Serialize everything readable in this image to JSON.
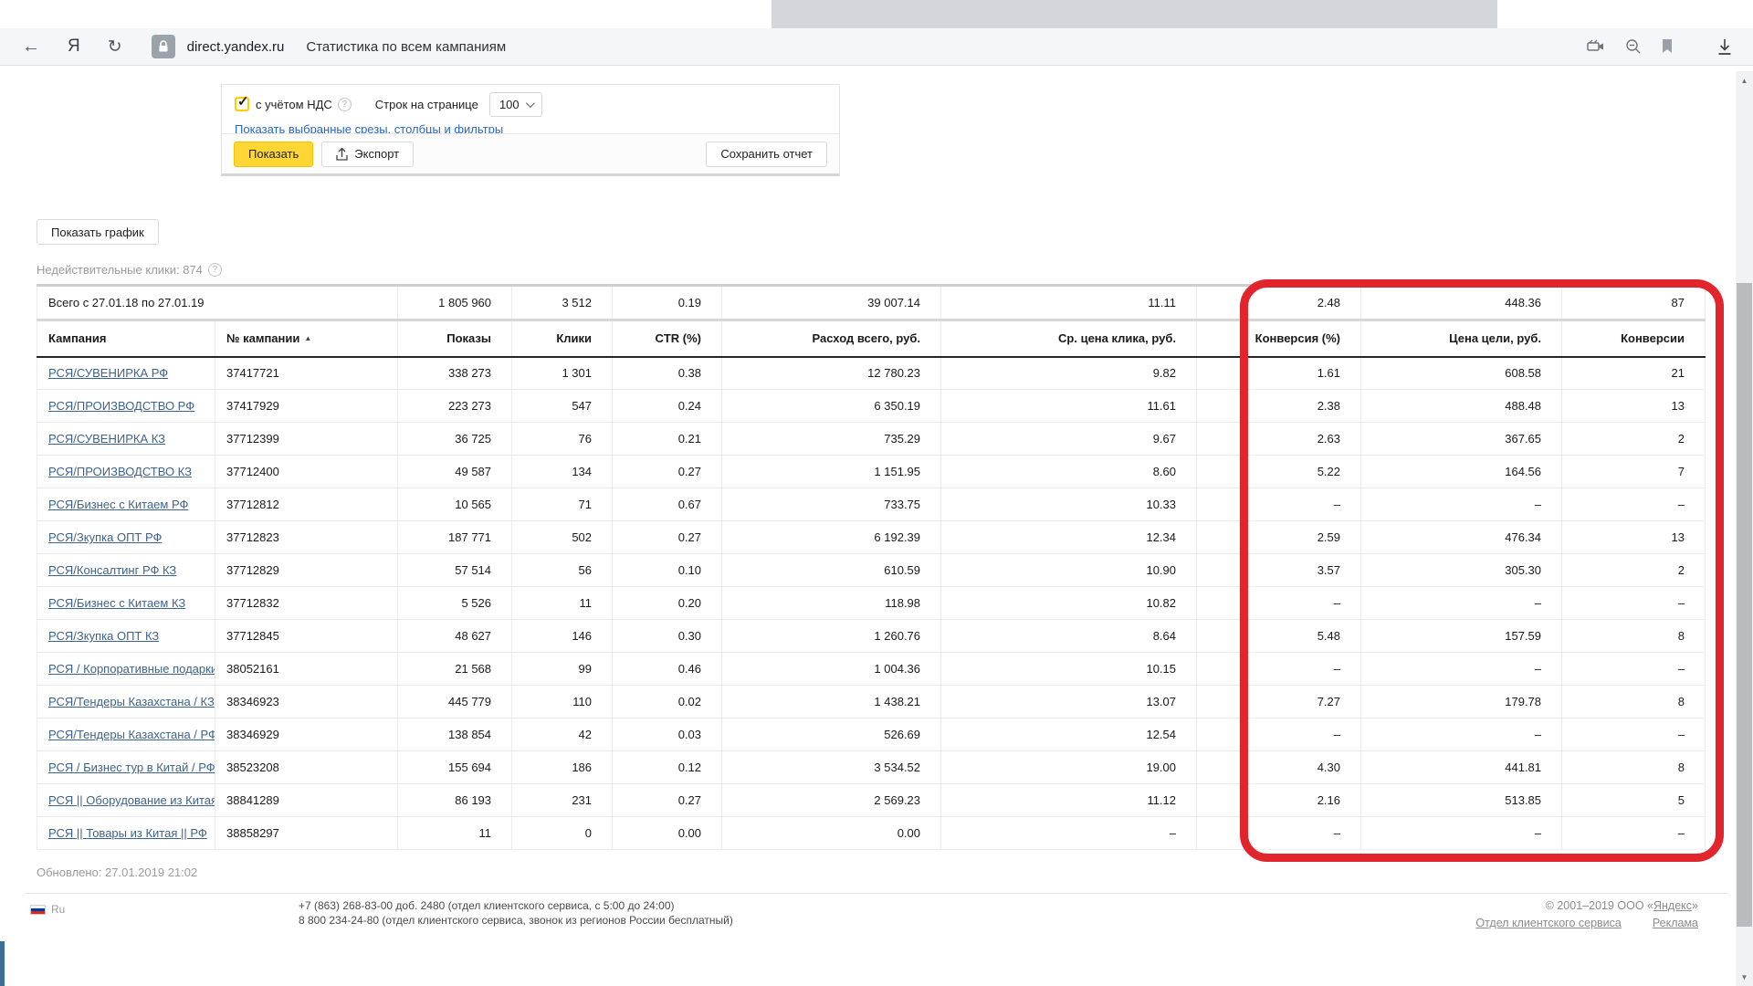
{
  "browser": {
    "domain": "direct.yandex.ru",
    "title": "Статистика по всем кампаниям"
  },
  "icons": {
    "back": "←",
    "yandex_logo": "Я",
    "refresh": "↻",
    "help": "?",
    "check": "✓",
    "sort_asc": "▲",
    "scroll_up": "▲",
    "scroll_down": "▼"
  },
  "panel": {
    "vat_label": "с учётом НДС",
    "rows_label": "Строк на странице",
    "rows_value": "100",
    "slices_link": "Показать выбранные срезы, столбцы и фильтры",
    "show_button": "Показать",
    "export_button": "Экспорт",
    "save_report_button": "Сохранить отчет"
  },
  "page": {
    "show_chart_button": "Показать график",
    "invalid_clicks": "Недействительные клики: 874",
    "updated": "Обновлено: 27.01.2019 21:02"
  },
  "table": {
    "columns": [
      {
        "key": "name",
        "label": "Кампания",
        "align": "left"
      },
      {
        "key": "id",
        "label": "№ кампании",
        "align": "left",
        "sorted": true
      },
      {
        "key": "shows",
        "label": "Показы",
        "align": "right"
      },
      {
        "key": "clicks",
        "label": "Клики",
        "align": "right"
      },
      {
        "key": "ctr",
        "label": "CTR (%)",
        "align": "right"
      },
      {
        "key": "cost",
        "label": "Расход всего, руб.",
        "align": "right"
      },
      {
        "key": "cpc",
        "label": "Ср. цена клика, руб.",
        "align": "right"
      },
      {
        "key": "conv_pct",
        "label": "Конверсия (%)",
        "align": "right"
      },
      {
        "key": "goal_cost",
        "label": "Цена цели, руб.",
        "align": "right"
      },
      {
        "key": "conversions",
        "label": "Конверсии",
        "align": "right"
      }
    ],
    "total": {
      "label": "Всего с 27.01.18 по 27.01.19",
      "values": {
        "shows": "1 805 960",
        "clicks": "3 512",
        "ctr": "0.19",
        "cost": "39 007.14",
        "cpc": "11.11",
        "conv_pct": "2.48",
        "goal_cost": "448.36",
        "conversions": "87"
      }
    },
    "rows": [
      {
        "name": "РСЯ/СУВЕНИРКА РФ",
        "id": "37417721",
        "shows": "338 273",
        "clicks": "1 301",
        "ctr": "0.38",
        "cost": "12 780.23",
        "cpc": "9.82",
        "conv_pct": "1.61",
        "goal_cost": "608.58",
        "conversions": "21"
      },
      {
        "name": "РСЯ/ПРОИЗВОДСТВО РФ",
        "id": "37417929",
        "shows": "223 273",
        "clicks": "547",
        "ctr": "0.24",
        "cost": "6 350.19",
        "cpc": "11.61",
        "conv_pct": "2.38",
        "goal_cost": "488.48",
        "conversions": "13"
      },
      {
        "name": "РСЯ/СУВЕНИРКА КЗ",
        "id": "37712399",
        "shows": "36 725",
        "clicks": "76",
        "ctr": "0.21",
        "cost": "735.29",
        "cpc": "9.67",
        "conv_pct": "2.63",
        "goal_cost": "367.65",
        "conversions": "2"
      },
      {
        "name": "РСЯ/ПРОИЗВОДСТВО КЗ",
        "id": "37712400",
        "shows": "49 587",
        "clicks": "134",
        "ctr": "0.27",
        "cost": "1 151.95",
        "cpc": "8.60",
        "conv_pct": "5.22",
        "goal_cost": "164.56",
        "conversions": "7"
      },
      {
        "name": "РСЯ/Бизнес с Китаем РФ",
        "id": "37712812",
        "shows": "10 565",
        "clicks": "71",
        "ctr": "0.67",
        "cost": "733.75",
        "cpc": "10.33",
        "conv_pct": "–",
        "goal_cost": "–",
        "conversions": "–"
      },
      {
        "name": "РСЯ/Зкупка ОПТ РФ",
        "id": "37712823",
        "shows": "187 771",
        "clicks": "502",
        "ctr": "0.27",
        "cost": "6 192.39",
        "cpc": "12.34",
        "conv_pct": "2.59",
        "goal_cost": "476.34",
        "conversions": "13"
      },
      {
        "name": "РСЯ/Консалтинг РФ КЗ",
        "id": "37712829",
        "shows": "57 514",
        "clicks": "56",
        "ctr": "0.10",
        "cost": "610.59",
        "cpc": "10.90",
        "conv_pct": "3.57",
        "goal_cost": "305.30",
        "conversions": "2"
      },
      {
        "name": "РСЯ/Бизнес с Китаем КЗ",
        "id": "37712832",
        "shows": "5 526",
        "clicks": "11",
        "ctr": "0.20",
        "cost": "118.98",
        "cpc": "10.82",
        "conv_pct": "–",
        "goal_cost": "–",
        "conversions": "–"
      },
      {
        "name": "РСЯ/Зкупка ОПТ КЗ",
        "id": "37712845",
        "shows": "48 627",
        "clicks": "146",
        "ctr": "0.30",
        "cost": "1 260.76",
        "cpc": "8.64",
        "conv_pct": "5.48",
        "goal_cost": "157.59",
        "conversions": "8"
      },
      {
        "name": "РСЯ / Корпоративные подарки / РФ",
        "id": "38052161",
        "shows": "21 568",
        "clicks": "99",
        "ctr": "0.46",
        "cost": "1 004.36",
        "cpc": "10.15",
        "conv_pct": "–",
        "goal_cost": "–",
        "conversions": "–"
      },
      {
        "name": "РСЯ/Тендеры Казахстана / КЗ",
        "id": "38346923",
        "shows": "445 779",
        "clicks": "110",
        "ctr": "0.02",
        "cost": "1 438.21",
        "cpc": "13.07",
        "conv_pct": "7.27",
        "goal_cost": "179.78",
        "conversions": "8"
      },
      {
        "name": "РСЯ/Тендеры Казахстана / РФ",
        "id": "38346929",
        "shows": "138 854",
        "clicks": "42",
        "ctr": "0.03",
        "cost": "526.69",
        "cpc": "12.54",
        "conv_pct": "–",
        "goal_cost": "–",
        "conversions": "–"
      },
      {
        "name": "РСЯ / Бизнес тур в Китай / РФ",
        "id": "38523208",
        "shows": "155 694",
        "clicks": "186",
        "ctr": "0.12",
        "cost": "3 534.52",
        "cpc": "19.00",
        "conv_pct": "4.30",
        "goal_cost": "441.81",
        "conversions": "8"
      },
      {
        "name": "РСЯ || Оборудование из Китая || РФ",
        "id": "38841289",
        "shows": "86 193",
        "clicks": "231",
        "ctr": "0.27",
        "cost": "2 569.23",
        "cpc": "11.12",
        "conv_pct": "2.16",
        "goal_cost": "513.85",
        "conversions": "5"
      },
      {
        "name": "РСЯ || Товары из Китая || РФ",
        "id": "38858297",
        "shows": "11",
        "clicks": "0",
        "ctr": "0.00",
        "cost": "0.00",
        "cpc": "–",
        "conv_pct": "–",
        "goal_cost": "–",
        "conversions": "–"
      }
    ]
  },
  "footer": {
    "lang": "Ru",
    "phone_line1": "+7 (863) 268-83-00 доб. 2480 (отдел клиентского сервиса, с 5:00 до 24:00)",
    "phone_line2": "8 800 234-24-80 (отдел клиентского сервиса, звонок из регионов России бесплатный)",
    "copyright_prefix": "© 2001–2019  ООО «",
    "copyright_brand": "Яндекс",
    "copyright_suffix": "»",
    "service_link": "Отдел клиентского сервиса",
    "ads_link": "Реклама"
  },
  "colors": {
    "accent_yellow": "#ffd633",
    "annotation_red": "#e2242c",
    "campaign_link_blue": "#3d638b"
  }
}
